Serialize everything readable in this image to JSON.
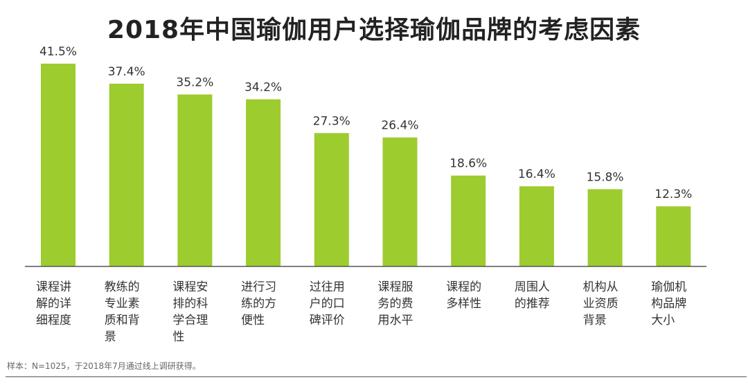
{
  "chart_data": {
    "type": "bar",
    "title": "2018年中国瑜伽用户选择瑜伽品牌的考虑因素",
    "categories": [
      [
        "课程讲",
        "解的详",
        "细程度"
      ],
      [
        "教练的",
        "专业素",
        "质和背",
        "景"
      ],
      [
        "课程安",
        "排的科",
        "学合理",
        "性"
      ],
      [
        "进行习",
        "练的方",
        "便性"
      ],
      [
        "过往用",
        "户的口",
        "碑评价"
      ],
      [
        "课程服",
        "务的费",
        "用水平"
      ],
      [
        "课程的",
        "多样性"
      ],
      [
        "周围人",
        "的推荐"
      ],
      [
        "机构从",
        "业资质",
        "背景"
      ],
      [
        "瑜伽机",
        "构品牌",
        "大小"
      ]
    ],
    "values": [
      41.5,
      37.4,
      35.2,
      34.2,
      27.3,
      26.4,
      18.6,
      16.4,
      15.8,
      12.3
    ],
    "value_labels": [
      "41.5%",
      "37.4%",
      "35.2%",
      "34.2%",
      "27.3%",
      "26.4%",
      "18.6%",
      "16.4%",
      "15.8%",
      "12.3%"
    ],
    "ylim": [
      0,
      45
    ],
    "grid": false,
    "bar_color": "#9ccc2e",
    "axis_color": "#555555"
  },
  "note": "样本：N=1025，于2018年7月通过线上调研获得。"
}
